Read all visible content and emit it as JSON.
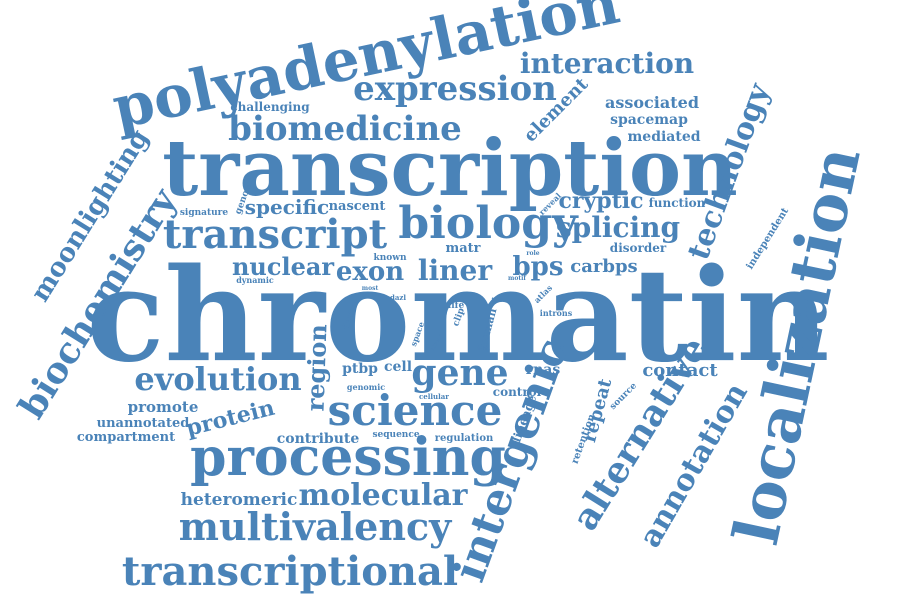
{
  "style": {
    "word_color": "#4a83b8",
    "background": "#ffffff"
  },
  "words": [
    {
      "text": "chromatin",
      "weight": 1.0
    },
    {
      "text": "transcription",
      "weight": 0.7
    },
    {
      "text": "localization",
      "weight": 0.55
    },
    {
      "text": "polyadenylation",
      "weight": 0.52
    },
    {
      "text": "processing",
      "weight": 0.5
    },
    {
      "text": "intergenic",
      "weight": 0.45
    },
    {
      "text": "transcriptional",
      "weight": 0.42
    },
    {
      "text": "science",
      "weight": 0.42
    },
    {
      "text": "biology",
      "weight": 0.42
    },
    {
      "text": "alternative",
      "weight": 0.4
    },
    {
      "text": "transcript",
      "weight": 0.4
    },
    {
      "text": "biochemistry",
      "weight": 0.38
    },
    {
      "text": "multivalency",
      "weight": 0.38
    },
    {
      "text": "biomedicine",
      "weight": 0.36
    },
    {
      "text": "expression",
      "weight": 0.36
    },
    {
      "text": "gene",
      "weight": 0.36
    },
    {
      "text": "annotation",
      "weight": 0.34
    },
    {
      "text": "technology",
      "weight": 0.34
    },
    {
      "text": "evolution",
      "weight": 0.34
    },
    {
      "text": "molecular",
      "weight": 0.32
    },
    {
      "text": "interaction",
      "weight": 0.3
    },
    {
      "text": "splicing",
      "weight": 0.3
    },
    {
      "text": "moonlighting",
      "weight": 0.28
    },
    {
      "text": "liner",
      "weight": 0.3
    },
    {
      "text": "exon",
      "weight": 0.28
    },
    {
      "text": "bps",
      "weight": 0.28
    },
    {
      "text": "nuclear",
      "weight": 0.26
    },
    {
      "text": "region",
      "weight": 0.26
    },
    {
      "text": "protein",
      "weight": 0.24
    },
    {
      "text": "cryptic",
      "weight": 0.22
    },
    {
      "text": "element",
      "weight": 0.2
    },
    {
      "text": "specific",
      "weight": 0.2
    },
    {
      "text": "carbps",
      "weight": 0.2
    },
    {
      "text": "contact",
      "weight": 0.2
    },
    {
      "text": "repeat",
      "weight": 0.2
    },
    {
      "text": "heteromeric",
      "weight": 0.18
    },
    {
      "text": "associated",
      "weight": 0.18
    },
    {
      "text": "spacemap",
      "weight": 0.16
    },
    {
      "text": "mediated",
      "weight": 0.16
    },
    {
      "text": "promote",
      "weight": 0.16
    },
    {
      "text": "contribute",
      "weight": 0.16
    },
    {
      "text": "ptbp",
      "weight": 0.16
    },
    {
      "text": "cell",
      "weight": 0.16
    },
    {
      "text": "rnas",
      "weight": 0.16
    },
    {
      "text": "challenging",
      "weight": 0.14
    },
    {
      "text": "compartment",
      "weight": 0.14
    },
    {
      "text": "unannotated",
      "weight": 0.14
    },
    {
      "text": "lineage",
      "weight": 0.14
    },
    {
      "text": "control",
      "weight": 0.14
    },
    {
      "text": "nascent",
      "weight": 0.14
    },
    {
      "text": "function",
      "weight": 0.14
    },
    {
      "text": "matr",
      "weight": 0.14
    },
    {
      "text": "disorder",
      "weight": 0.12
    },
    {
      "text": "human",
      "weight": 0.12
    },
    {
      "text": "retention",
      "weight": 0.1
    },
    {
      "text": "sequence",
      "weight": 0.1
    },
    {
      "text": "regulation",
      "weight": 0.1
    },
    {
      "text": "independent",
      "weight": 0.1
    },
    {
      "text": "signature",
      "weight": 0.1
    },
    {
      "text": "genome",
      "weight": 0.1
    },
    {
      "text": "known",
      "weight": 0.1
    },
    {
      "text": "derive",
      "weight": 0.1
    },
    {
      "text": "source",
      "weight": 0.1
    },
    {
      "text": "clip",
      "weight": 0.08
    },
    {
      "text": "life",
      "weight": 0.08
    },
    {
      "text": "introns",
      "weight": 0.08
    },
    {
      "text": "genomic",
      "weight": 0.08
    },
    {
      "text": "cellular",
      "weight": 0.08
    },
    {
      "text": "dynamic",
      "weight": 0.08
    },
    {
      "text": "atlas",
      "weight": 0.08
    },
    {
      "text": "space",
      "weight": 0.08
    },
    {
      "text": "reveal",
      "weight": 0.08
    },
    {
      "text": "dazl",
      "weight": 0.06
    },
    {
      "text": "most",
      "weight": 0.06
    },
    {
      "text": "motif",
      "weight": 0.06
    },
    {
      "text": "many",
      "weight": 0.06
    },
    {
      "text": "role",
      "weight": 0.06
    },
    {
      "text": "the",
      "weight": 0.06
    },
    {
      "text": "idea",
      "weight": 0.06
    }
  ]
}
